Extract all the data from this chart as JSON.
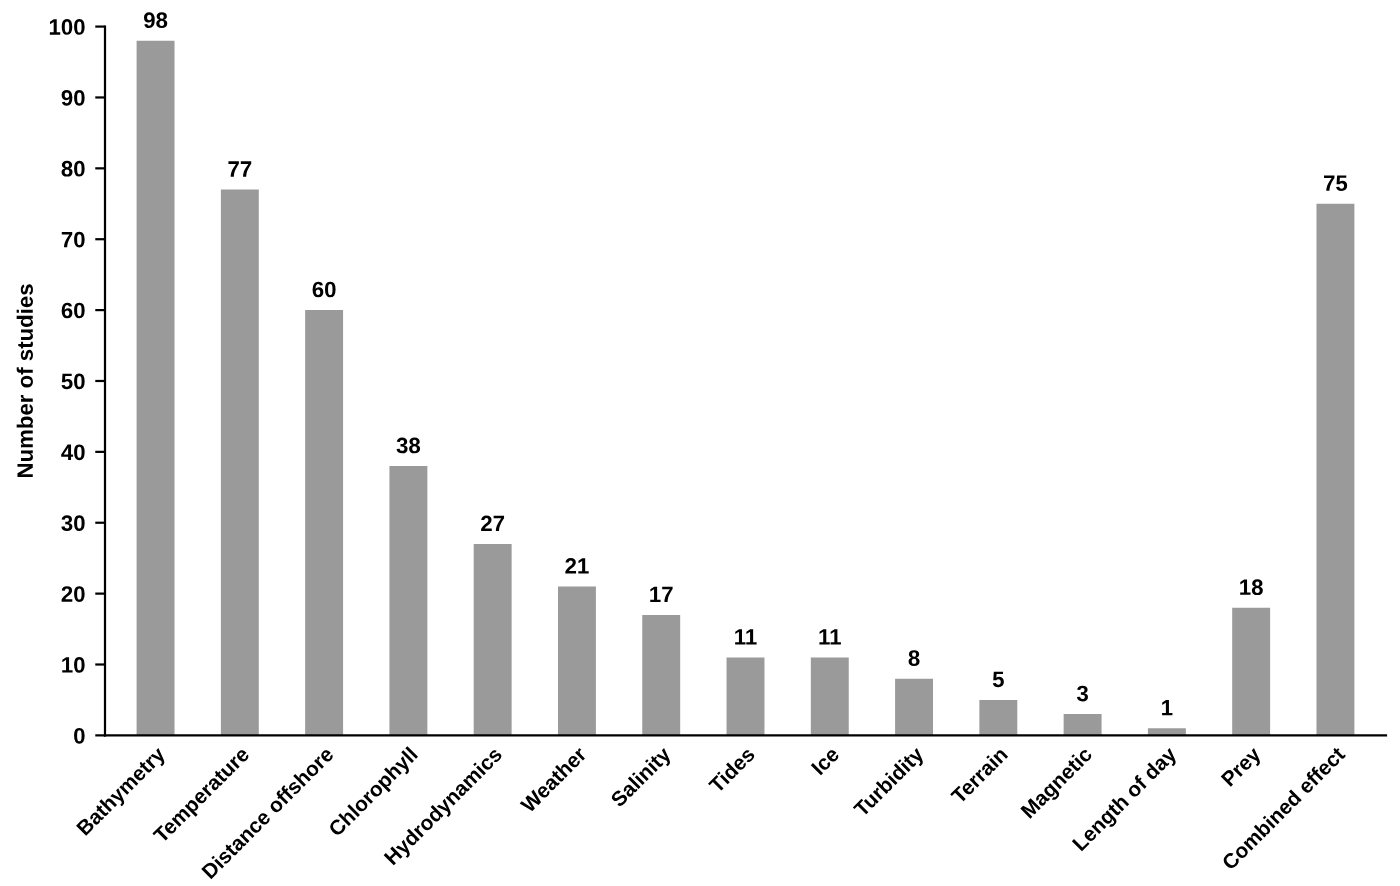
{
  "chart_data": {
    "type": "bar",
    "ylabel": "Number of studies",
    "categories": [
      "Bathymetry",
      "Temperature",
      "Distance offshore",
      "Chlorophyll",
      "Hydrodynamics",
      "Weather",
      "Salinity",
      "Tides",
      "Ice",
      "Turbidity",
      "Terrain",
      "Magnetic",
      "Length of day",
      "Prey",
      "Combined effect"
    ],
    "values": [
      98,
      77,
      60,
      38,
      27,
      21,
      17,
      11,
      11,
      8,
      5,
      3,
      1,
      18,
      75
    ],
    "color": "#9a9a9a",
    "ylim": [
      0,
      100
    ],
    "yticks": [
      0,
      10,
      20,
      30,
      40,
      50,
      60,
      70,
      80,
      90,
      100
    ],
    "data_labels": true,
    "grid": false,
    "legend": false
  }
}
